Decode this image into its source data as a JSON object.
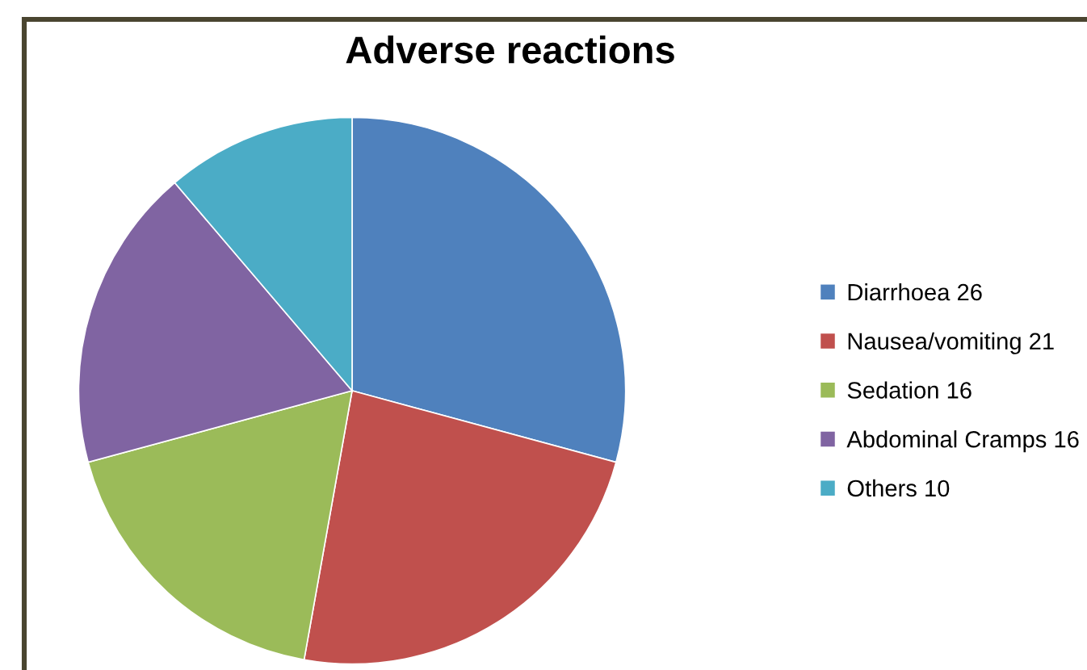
{
  "chart_data": {
    "type": "pie",
    "title": "Adverse reactions",
    "categories": [
      "Diarrhoea 26",
      "Nausea/vomiting 21",
      "Sedation 16",
      "Abdominal Cramps 16",
      "Others 10"
    ],
    "values": [
      26,
      21,
      16,
      16,
      10
    ],
    "colors": [
      "#4f81bd",
      "#c0504d",
      "#9bbb59",
      "#8064a2",
      "#4bacc6"
    ],
    "legend": "right"
  }
}
